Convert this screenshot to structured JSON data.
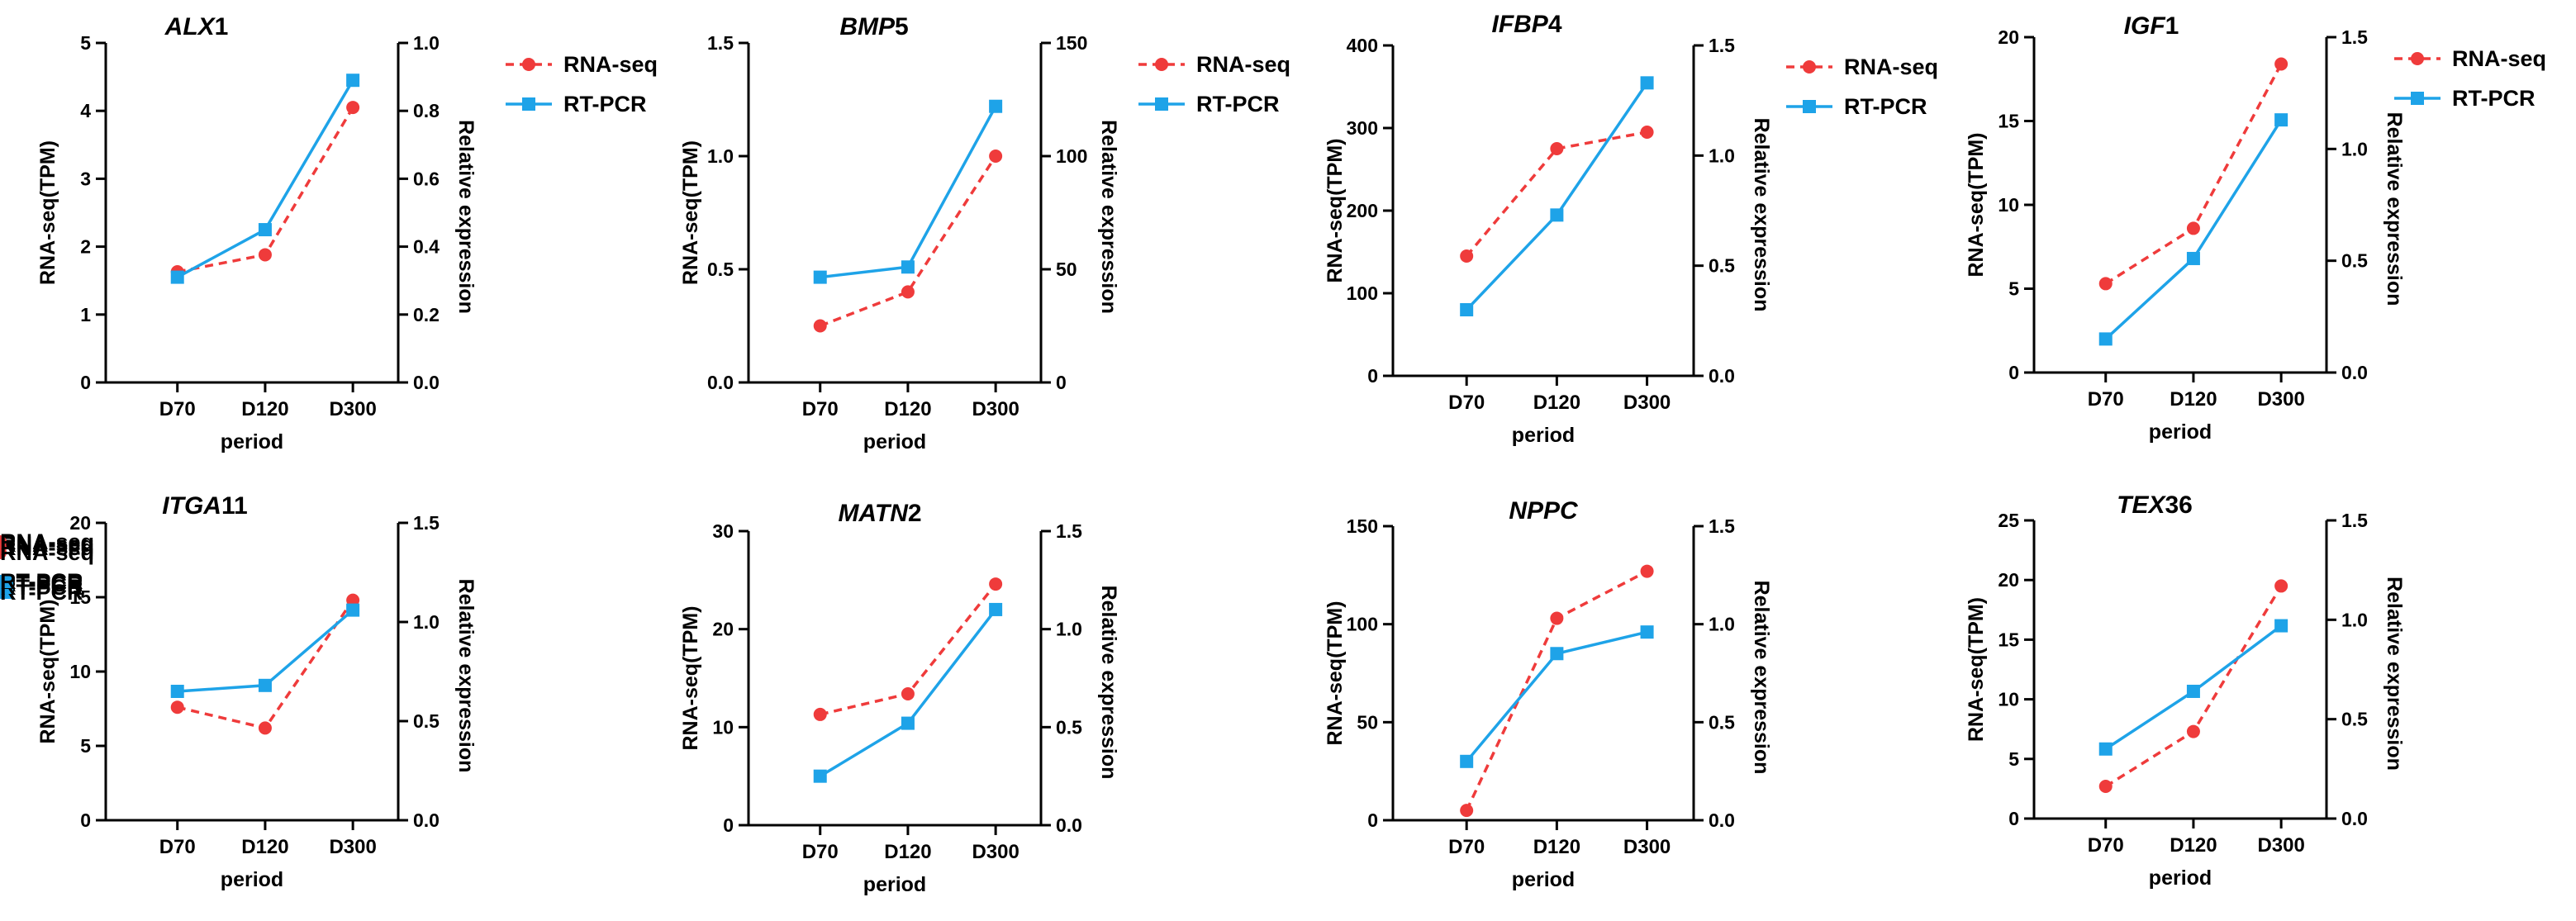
{
  "legend": {
    "rna_label": "RNA-seq",
    "pcr_label": "RT-PCR"
  },
  "colors": {
    "rna": "#ef3b3b",
    "pcr": "#1ea3e8",
    "axis": "#000000"
  },
  "chart_data": [
    {
      "type": "line",
      "title_italic": "ALX",
      "title_suffix": "1",
      "categories": [
        "D70",
        "D120",
        "D300"
      ],
      "xlabel": "period",
      "ylabel_left": "RNA-seq(TPM)",
      "ylabel_right": "Relative expression",
      "left_ticks": [
        "0",
        "1",
        "2",
        "3",
        "4",
        "5"
      ],
      "right_ticks": [
        "0.0",
        "0.2",
        "0.4",
        "0.6",
        "0.8",
        "1.0"
      ],
      "ylim_left": [
        0,
        5
      ],
      "ylim_right": [
        0,
        1.0
      ],
      "series": [
        {
          "name": "RNA-seq",
          "axis": "left",
          "values": [
            1.63,
            1.88,
            4.05
          ]
        },
        {
          "name": "RT-PCR",
          "axis": "right",
          "values": [
            0.31,
            0.45,
            0.89
          ]
        }
      ]
    },
    {
      "type": "line",
      "title_italic": "BMP",
      "title_suffix": "5",
      "categories": [
        "D70",
        "D120",
        "D300"
      ],
      "xlabel": "period",
      "ylabel_left": "RNA-seq(TPM)",
      "ylabel_right": "Relative expression",
      "left_ticks": [
        "0.0",
        "0.5",
        "1.0",
        "1.5"
      ],
      "right_ticks": [
        "0",
        "50",
        "100",
        "150"
      ],
      "ylim_left": [
        0,
        1.5
      ],
      "ylim_right": [
        0,
        150
      ],
      "series": [
        {
          "name": "RNA-seq",
          "axis": "left",
          "values": [
            0.25,
            0.4,
            1.0
          ]
        },
        {
          "name": "RT-PCR",
          "axis": "right",
          "values": [
            46.5,
            51,
            122
          ]
        }
      ]
    },
    {
      "type": "line",
      "title_italic": "IFBP",
      "title_suffix": "4",
      "categories": [
        "D70",
        "D120",
        "D300"
      ],
      "xlabel": "period",
      "ylabel_left": "RNA-seq(TPM)",
      "ylabel_right": "Relative expression",
      "left_ticks": [
        "0",
        "100",
        "200",
        "300",
        "400"
      ],
      "right_ticks": [
        "0.0",
        "0.5",
        "1.0",
        "1.5"
      ],
      "ylim_left": [
        0,
        400
      ],
      "ylim_right": [
        0,
        1.5
      ],
      "series": [
        {
          "name": "RNA-seq",
          "axis": "left",
          "values": [
            145,
            275,
            295
          ]
        },
        {
          "name": "RT-PCR",
          "axis": "right",
          "values": [
            0.3,
            0.73,
            1.33
          ]
        }
      ]
    },
    {
      "type": "line",
      "title_italic": "IGF",
      "title_suffix": "1",
      "categories": [
        "D70",
        "D120",
        "D300"
      ],
      "xlabel": "period",
      "ylabel_left": "RNA-seq(TPM)",
      "ylabel_right": "Relative expression",
      "left_ticks": [
        "0",
        "5",
        "10",
        "15",
        "20"
      ],
      "right_ticks": [
        "0.0",
        "0.5",
        "1.0",
        "1.5"
      ],
      "ylim_left": [
        0,
        20
      ],
      "ylim_right": [
        0,
        1.5
      ],
      "series": [
        {
          "name": "RNA-seq",
          "axis": "left",
          "values": [
            5.3,
            8.6,
            18.4
          ]
        },
        {
          "name": "RT-PCR",
          "axis": "right",
          "values": [
            0.15,
            0.51,
            1.13
          ]
        }
      ]
    },
    {
      "type": "line",
      "title_italic": "ITGA",
      "title_suffix": "11",
      "categories": [
        "D70",
        "D120",
        "D300"
      ],
      "xlabel": "period",
      "ylabel_left": "RNA-seq(TPM)",
      "ylabel_right": "Relative expression",
      "left_ticks": [
        "0",
        "5",
        "10",
        "15",
        "20"
      ],
      "right_ticks": [
        "0.0",
        "0.5",
        "1.0",
        "1.5"
      ],
      "ylim_left": [
        0,
        20
      ],
      "ylim_right": [
        0,
        1.5
      ],
      "series": [
        {
          "name": "RNA-seq",
          "axis": "left",
          "values": [
            7.6,
            6.2,
            14.8
          ]
        },
        {
          "name": "RT-PCR",
          "axis": "right",
          "values": [
            0.65,
            0.68,
            1.06
          ]
        }
      ]
    },
    {
      "type": "line",
      "title_italic": "MATN",
      "title_suffix": "2",
      "categories": [
        "D70",
        "D120",
        "D300"
      ],
      "xlabel": "period",
      "ylabel_left": "RNA-seq(TPM)",
      "ylabel_right": "Relative expression",
      "left_ticks": [
        "0",
        "10",
        "20",
        "30"
      ],
      "right_ticks": [
        "0.0",
        "0.5",
        "1.0",
        "1.5"
      ],
      "ylim_left": [
        0,
        30
      ],
      "ylim_right": [
        0,
        1.5
      ],
      "series": [
        {
          "name": "RNA-seq",
          "axis": "left",
          "values": [
            11.3,
            13.4,
            24.6
          ]
        },
        {
          "name": "RT-PCR",
          "axis": "right",
          "values": [
            0.25,
            0.52,
            1.1
          ]
        }
      ]
    },
    {
      "type": "line",
      "title_italic": "NPPC",
      "title_suffix": "",
      "categories": [
        "D70",
        "D120",
        "D300"
      ],
      "xlabel": "period",
      "ylabel_left": "RNA-seq(TPM)",
      "ylabel_right": "Relative expression",
      "left_ticks": [
        "0",
        "50",
        "100",
        "150"
      ],
      "right_ticks": [
        "0.0",
        "0.5",
        "1.0",
        "1.5"
      ],
      "ylim_left": [
        0,
        150
      ],
      "ylim_right": [
        0,
        1.5
      ],
      "series": [
        {
          "name": "RNA-seq",
          "axis": "left",
          "values": [
            5,
            103,
            127
          ]
        },
        {
          "name": "RT-PCR",
          "axis": "right",
          "values": [
            0.3,
            0.85,
            0.96
          ]
        }
      ]
    },
    {
      "type": "line",
      "title_italic": "TEX",
      "title_suffix": "36",
      "categories": [
        "D70",
        "D120",
        "D300"
      ],
      "xlabel": "period",
      "ylabel_left": "RNA-seq(TPM)",
      "ylabel_right": "Relative expression",
      "left_ticks": [
        "0",
        "5",
        "10",
        "15",
        "20",
        "25"
      ],
      "right_ticks": [
        "0.0",
        "0.5",
        "1.0",
        "1.5"
      ],
      "ylim_left": [
        0,
        25
      ],
      "ylim_right": [
        0,
        1.5
      ],
      "series": [
        {
          "name": "RNA-seq",
          "axis": "left",
          "values": [
            2.7,
            7.3,
            19.5
          ]
        },
        {
          "name": "RT-PCR",
          "axis": "right",
          "values": [
            0.35,
            0.64,
            0.97
          ]
        }
      ]
    }
  ]
}
